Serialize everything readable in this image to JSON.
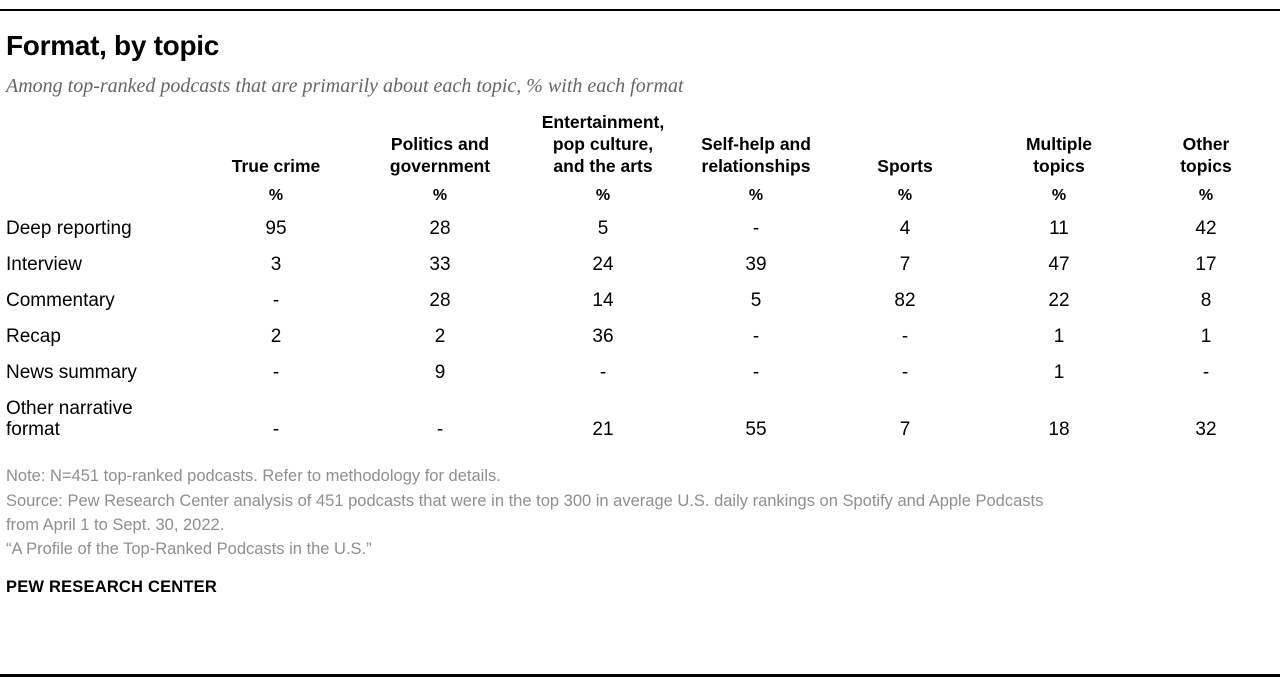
{
  "header": {
    "title": "Format, by topic",
    "subtitle": "Among top-ranked podcasts that are primarily about each topic, % with each format"
  },
  "table": {
    "unit_label": "%",
    "column_headers": [
      "True crime",
      "Politics and\ngovernment",
      "Entertainment,\npop culture,\nand the arts",
      "Self-help and\nrelationships",
      "Sports",
      "Multiple\ntopics",
      "Other\ntopics"
    ],
    "rows": [
      {
        "label": "Deep reporting",
        "values": [
          "95",
          "28",
          "5",
          "-",
          "4",
          "11",
          "42"
        ]
      },
      {
        "label": "Interview",
        "values": [
          "3",
          "33",
          "24",
          "39",
          "7",
          "47",
          "17"
        ]
      },
      {
        "label": "Commentary",
        "values": [
          "-",
          "28",
          "14",
          "5",
          "82",
          "22",
          "8"
        ]
      },
      {
        "label": "Recap",
        "values": [
          "2",
          "2",
          "36",
          "-",
          "-",
          "1",
          "1"
        ]
      },
      {
        "label": "News summary",
        "values": [
          "-",
          "9",
          "-",
          "-",
          "-",
          "1",
          "-"
        ]
      },
      {
        "label": "Other narrative\nformat",
        "values": [
          "-",
          "-",
          "21",
          "55",
          "7",
          "18",
          "32"
        ]
      }
    ]
  },
  "chart_data": {
    "type": "table",
    "title": "Format, by topic",
    "subtitle": "Among top-ranked podcasts that are primarily about each topic, % with each format",
    "unit": "%",
    "columns": [
      "True crime",
      "Politics and government",
      "Entertainment, pop culture, and the arts",
      "Self-help and relationships",
      "Sports",
      "Multiple topics",
      "Other topics"
    ],
    "rows": [
      {
        "format": "Deep reporting",
        "values": [
          95,
          28,
          5,
          null,
          4,
          11,
          42
        ]
      },
      {
        "format": "Interview",
        "values": [
          3,
          33,
          24,
          39,
          7,
          47,
          17
        ]
      },
      {
        "format": "Commentary",
        "values": [
          null,
          28,
          14,
          5,
          82,
          22,
          8
        ]
      },
      {
        "format": "Recap",
        "values": [
          2,
          2,
          36,
          null,
          null,
          1,
          1
        ]
      },
      {
        "format": "News summary",
        "values": [
          null,
          9,
          null,
          null,
          null,
          1,
          null
        ]
      },
      {
        "format": "Other narrative format",
        "values": [
          null,
          null,
          21,
          55,
          7,
          18,
          32
        ]
      }
    ],
    "missing_value_symbol": "-"
  },
  "footer": {
    "note": "Note: N=451 top-ranked podcasts. Refer to methodology for details.",
    "source": "Source: Pew Research Center analysis of 451 podcasts that were in the top 300 in average U.S. daily rankings on Spotify and Apple Podcasts\nfrom April 1 to Sept. 30, 2022.",
    "citation": "“A Profile of the Top-Ranked Podcasts in the U.S.”",
    "brand": "PEW RESEARCH CENTER"
  },
  "colors": {
    "text": "#000000",
    "subtitle_gray": "#666666",
    "note_gray": "#8f8f8f",
    "rule_black": "#000000"
  }
}
